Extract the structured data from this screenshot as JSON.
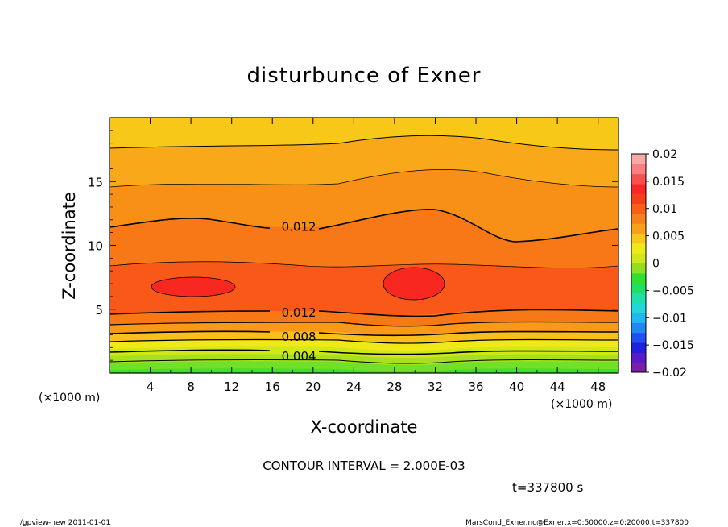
{
  "chart_data": {
    "type": "heatmap",
    "title": "disturbunce of Exner",
    "xlabel": "X-coordinate",
    "ylabel": "Z-coordinate",
    "x_unit_left": "(×1000 m)",
    "x_unit_right": "(×1000 m)",
    "xlim": [
      0,
      50
    ],
    "ylim": [
      0,
      20
    ],
    "x_ticks": [
      {
        "v": 4,
        "label": "4"
      },
      {
        "v": 8,
        "label": "8"
      },
      {
        "v": 12,
        "label": "12"
      },
      {
        "v": 16,
        "label": "16"
      },
      {
        "v": 20,
        "label": "20"
      },
      {
        "v": 24,
        "label": "24"
      },
      {
        "v": 28,
        "label": "28"
      },
      {
        "v": 32,
        "label": "32"
      },
      {
        "v": 36,
        "label": "36"
      },
      {
        "v": 40,
        "label": "40"
      },
      {
        "v": 44,
        "label": "44"
      },
      {
        "v": 48,
        "label": "48"
      }
    ],
    "y_ticks": [
      {
        "v": 5,
        "label": "5"
      },
      {
        "v": 10,
        "label": "10"
      },
      {
        "v": 15,
        "label": "15"
      }
    ],
    "contour_labels": [
      {
        "text": "0.012",
        "x": 18.6,
        "z": 11.5
      },
      {
        "text": "0.012",
        "x": 18.6,
        "z": 4.8
      },
      {
        "text": "0.008",
        "x": 18.6,
        "z": 2.9
      },
      {
        "text": "0.004",
        "x": 18.6,
        "z": 1.4
      }
    ],
    "colorbar": {
      "min": -0.02,
      "max": 0.02,
      "labels": [
        "0.02",
        "0.015",
        "0.01",
        "0.005",
        "0",
        "−0.005",
        "−0.01",
        "−0.015",
        "−0.02"
      ],
      "colors": [
        "#7a1fa8",
        "#5a1bc8",
        "#2020e0",
        "#2050f0",
        "#2088f0",
        "#20b8f0",
        "#20d8d8",
        "#20e0a8",
        "#20e060",
        "#30e030",
        "#90e020",
        "#d0e818",
        "#f0e818",
        "#f8c818",
        "#f8a018",
        "#f88018",
        "#f86018",
        "#f84018",
        "#f82828",
        "#f85050",
        "#f88080",
        "#f8a8a8"
      ]
    },
    "contour_interval": "CONTOUR INTERVAL = 2.000E-03",
    "time": "t=337800 s"
  },
  "footer": {
    "left": "./gpview-new   2011-01-01",
    "right": "MarsCond_Exner.nc@Exner,x=0:50000,z=0:20000,t=337800"
  }
}
